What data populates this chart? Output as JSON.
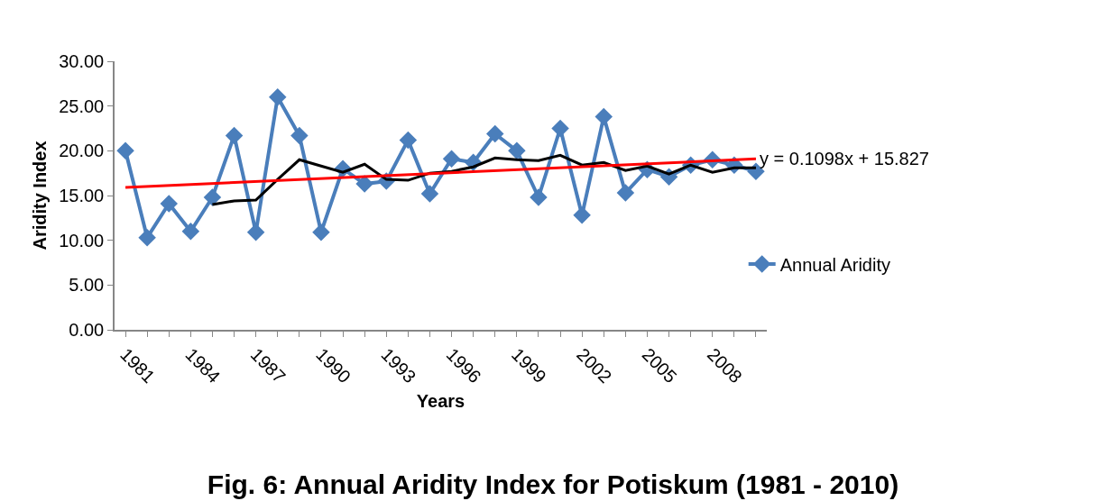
{
  "chart_data": {
    "type": "line",
    "title": "Fig. 6: Annual Aridity Index for Potiskum (1981 - 2010)",
    "xlabel": "Years",
    "ylabel": "Aridity Index",
    "categories": [
      "1981",
      null,
      null,
      "1984",
      null,
      null,
      "1987",
      null,
      null,
      "1990",
      null,
      null,
      "1993",
      null,
      null,
      "1996",
      null,
      null,
      "1999",
      null,
      null,
      "2002",
      null,
      null,
      "2005",
      null,
      null,
      "2008",
      null,
      null
    ],
    "series": [
      {
        "name": "Annual Aridity",
        "color": "#4a7ebb",
        "marker": "diamond",
        "values": [
          20.0,
          10.3,
          14.1,
          11.0,
          14.8,
          21.7,
          10.9,
          26.0,
          21.7,
          10.9,
          18.0,
          16.3,
          16.6,
          21.2,
          15.2,
          19.1,
          18.7,
          21.9,
          20.0,
          14.8,
          22.5,
          12.8,
          23.8,
          15.3,
          17.9,
          17.1,
          18.4,
          19.0,
          18.4,
          17.7
        ]
      },
      {
        "color": "#000000",
        "marker": "none",
        "values": [
          null,
          null,
          null,
          null,
          14.0,
          14.4,
          14.5,
          16.8,
          19.0,
          18.3,
          17.6,
          18.5,
          16.8,
          16.7,
          17.5,
          17.7,
          18.2,
          19.2,
          19.0,
          18.9,
          19.5,
          18.4,
          18.7,
          17.8,
          18.3,
          17.4,
          18.4,
          17.6,
          18.1,
          18.1
        ]
      },
      {
        "color": "#ff0000",
        "marker": "none",
        "values": [
          15.9,
          null,
          null,
          null,
          null,
          null,
          null,
          null,
          null,
          null,
          null,
          null,
          null,
          null,
          null,
          null,
          null,
          null,
          null,
          null,
          null,
          null,
          null,
          null,
          null,
          null,
          null,
          null,
          null,
          19.1
        ]
      }
    ],
    "annotations": [
      "y = 0.1098x + 15.827"
    ],
    "ylim": [
      0,
      30
    ],
    "yticks": [
      {
        "value": 0,
        "label": "0.00"
      },
      {
        "value": 5,
        "label": "5.00"
      },
      {
        "value": 10,
        "label": "10.00"
      },
      {
        "value": 15,
        "label": "15.00"
      },
      {
        "value": 20,
        "label": "20.00"
      },
      {
        "value": 25,
        "label": "25.00"
      },
      {
        "value": 30,
        "label": "30.00"
      }
    ],
    "grid": false,
    "legend": "right",
    "line_style": "solid"
  }
}
